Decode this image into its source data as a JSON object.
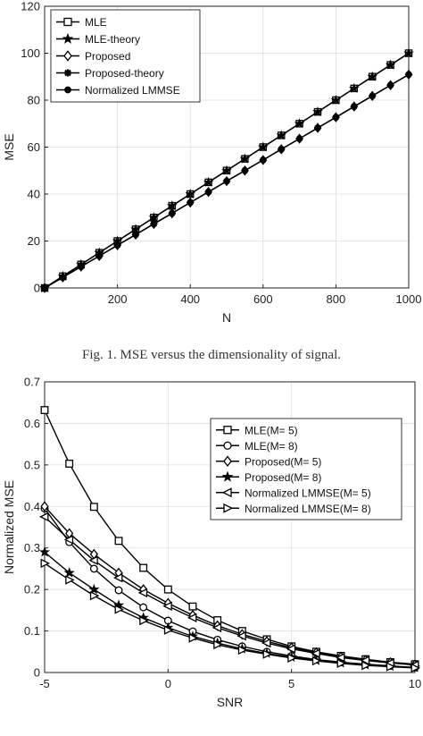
{
  "caption": "Fig. 1.    MSE versus the dimensionality of signal.",
  "chart_data": [
    {
      "type": "line",
      "xlabel": "N",
      "ylabel": "MSE",
      "xlim": [
        0,
        1000
      ],
      "ylim": [
        0,
        120
      ],
      "xticks": [
        200,
        400,
        600,
        800,
        1000
      ],
      "yticks": [
        0,
        20,
        40,
        60,
        80,
        100,
        120
      ],
      "xtick_labels": [
        "200",
        "400",
        "600",
        "800",
        "1000"
      ],
      "ytick_labels": [
        "0",
        "20",
        "40",
        "60",
        "80",
        "100",
        "120"
      ],
      "grid": true,
      "legend_position": "top-left",
      "x": [
        0,
        50,
        100,
        150,
        200,
        250,
        300,
        350,
        400,
        450,
        500,
        550,
        600,
        650,
        700,
        750,
        800,
        850,
        900,
        950,
        1000
      ],
      "series": [
        {
          "name": "MLE",
          "marker": "square",
          "values": [
            0,
            5,
            10,
            15,
            20,
            25,
            30,
            35,
            40,
            45,
            50,
            55,
            60,
            65,
            70,
            75,
            80,
            85,
            90,
            95,
            100
          ]
        },
        {
          "name": "MLE-theory",
          "marker": "star",
          "values": [
            0,
            5,
            10,
            15,
            20,
            25,
            30,
            35,
            40,
            45,
            50,
            55,
            60,
            65,
            70,
            75,
            80,
            85,
            90,
            95,
            100
          ]
        },
        {
          "name": "Proposed",
          "marker": "diamond",
          "values": [
            0,
            4.5,
            9.1,
            13.6,
            18.2,
            22.7,
            27.3,
            31.8,
            36.4,
            40.9,
            45.5,
            50,
            54.5,
            59.1,
            63.6,
            68.2,
            72.7,
            77.3,
            81.8,
            86.4,
            90.9
          ]
        },
        {
          "name": "Proposed-theory",
          "marker": "asterisk",
          "values": [
            0,
            4.5,
            9.1,
            13.6,
            18.2,
            22.7,
            27.3,
            31.8,
            36.4,
            40.9,
            45.5,
            50,
            54.5,
            59.1,
            63.6,
            68.2,
            72.7,
            77.3,
            81.8,
            86.4,
            90.9
          ]
        },
        {
          "name": "Normalized LMMSE",
          "marker": "filled-circle",
          "values": [
            0,
            4.5,
            9.1,
            13.6,
            18.2,
            22.7,
            27.3,
            31.8,
            36.4,
            40.9,
            45.5,
            50,
            54.5,
            59.1,
            63.6,
            68.2,
            72.7,
            77.3,
            81.8,
            86.4,
            90.9
          ]
        }
      ]
    },
    {
      "type": "line",
      "xlabel": "SNR",
      "ylabel": "Normalized MSE",
      "xlim": [
        -5,
        10
      ],
      "ylim": [
        0,
        0.7
      ],
      "xticks": [
        -5,
        0,
        5,
        10
      ],
      "yticks": [
        0,
        0.1,
        0.2,
        0.3,
        0.4,
        0.5,
        0.6,
        0.7
      ],
      "xtick_labels": [
        "-5",
        "0",
        "5",
        "10"
      ],
      "ytick_labels": [
        "0",
        "0.1",
        "0.2",
        "0.3",
        "0.4",
        "0.5",
        "0.6",
        "0.7"
      ],
      "grid": true,
      "legend_position": "top-right",
      "x": [
        -5,
        -4,
        -3,
        -2,
        -1,
        0,
        1,
        2,
        3,
        4,
        5,
        6,
        7,
        8,
        9,
        10
      ],
      "series": [
        {
          "name": "MLE(M= 5)",
          "marker": "square",
          "values": [
            0.632,
            0.503,
            0.399,
            0.317,
            0.252,
            0.2,
            0.159,
            0.126,
            0.1,
            0.08,
            0.063,
            0.05,
            0.04,
            0.032,
            0.025,
            0.02
          ]
        },
        {
          "name": "MLE(M= 8)",
          "marker": "circle",
          "values": [
            0.395,
            0.314,
            0.25,
            0.198,
            0.157,
            0.125,
            0.099,
            0.079,
            0.063,
            0.05,
            0.04,
            0.031,
            0.025,
            0.02,
            0.016,
            0.012
          ]
        },
        {
          "name": "Proposed(M= 5)",
          "marker": "diamond",
          "values": [
            0.4,
            0.335,
            0.285,
            0.24,
            0.2,
            0.167,
            0.138,
            0.113,
            0.092,
            0.075,
            0.06,
            0.048,
            0.038,
            0.03,
            0.024,
            0.019
          ]
        },
        {
          "name": "Proposed(M= 8)",
          "marker": "star",
          "values": [
            0.29,
            0.24,
            0.2,
            0.162,
            0.132,
            0.108,
            0.087,
            0.071,
            0.057,
            0.046,
            0.037,
            0.029,
            0.023,
            0.018,
            0.015,
            0.012
          ]
        },
        {
          "name": "Normalized LMMSE(M= 5)",
          "marker": "triangle-left",
          "values": [
            0.375,
            0.32,
            0.27,
            0.228,
            0.192,
            0.16,
            0.132,
            0.108,
            0.088,
            0.071,
            0.057,
            0.046,
            0.036,
            0.029,
            0.023,
            0.018
          ]
        },
        {
          "name": "Normalized LMMSE(M= 8)",
          "marker": "triangle-right",
          "values": [
            0.263,
            0.223,
            0.185,
            0.152,
            0.125,
            0.102,
            0.083,
            0.067,
            0.054,
            0.044,
            0.035,
            0.028,
            0.022,
            0.017,
            0.014,
            0.011
          ]
        }
      ]
    }
  ]
}
